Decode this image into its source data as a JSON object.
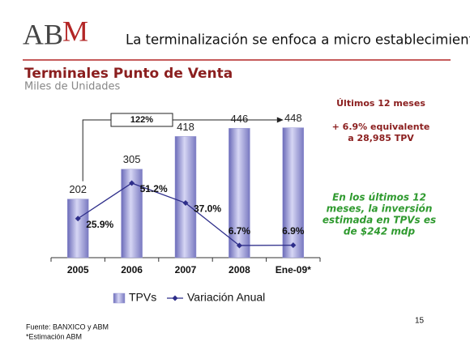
{
  "slide": {
    "logo": [
      "AB",
      "M"
    ],
    "header": "La terminalización se enfoca a micro establecimientos",
    "title": "Terminales Punto de Venta",
    "subtitle": "Miles de Unidades",
    "notes": {
      "heading": "Últimos 12 meses",
      "lines": [
        "+ 6.9% equivalente",
        "a 28,985 TPV"
      ],
      "highlight": [
        "En los últimos 12",
        "meses, la inversión",
        "estimada en TPVs es",
        "de $242 mdp"
      ]
    },
    "footer": [
      "Fuente: BANXICO y ABM",
      "*Estimación ABM"
    ],
    "page": "15"
  },
  "chart_data": {
    "type": "bar",
    "categories": [
      "2005",
      "2006",
      "2007",
      "2008",
      "Ene-09*"
    ],
    "annotation": "122%",
    "ylim": [
      0,
      500
    ],
    "y2lim": [
      -2,
      101.5
    ],
    "series": [
      {
        "name": "TPVs",
        "type": "bar",
        "color": "#9a9ad6",
        "values": [
          202,
          305,
          418,
          446,
          448
        ]
      },
      {
        "name": "Variación Anual",
        "type": "line",
        "axis": "y2",
        "color": "#2e2e8a",
        "values": [
          25.9,
          51.2,
          37.0,
          6.7,
          6.9
        ],
        "value_labels": [
          "25.9%",
          "51.2%",
          "37.0%",
          "6.7%",
          "6.9%"
        ]
      }
    ]
  }
}
